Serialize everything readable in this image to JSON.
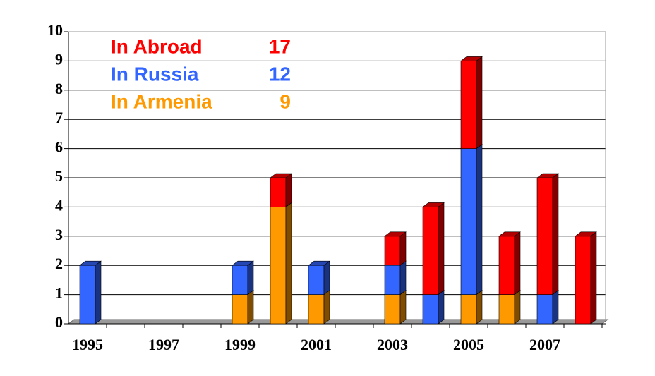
{
  "chart_data": {
    "type": "stacked-bar-3d",
    "categories": [
      "1995",
      null,
      "1997",
      null,
      "1999",
      null,
      "2001",
      null,
      "2003",
      null,
      "2005",
      null,
      "2007",
      null
    ],
    "series": [
      {
        "name": "In Abroad",
        "total": 17,
        "color": "#ff0000",
        "values": [
          0,
          0,
          0,
          0,
          0,
          1,
          0,
          0,
          1,
          3,
          3,
          2,
          4,
          3
        ]
      },
      {
        "name": "In Russia",
        "total": 12,
        "color": "#3366ff",
        "values": [
          2,
          0,
          0,
          0,
          1,
          0,
          1,
          0,
          1,
          1,
          5,
          0,
          1,
          0
        ]
      },
      {
        "name": "In Armenia",
        "total": 9,
        "color": "#ff9900",
        "values": [
          0,
          0,
          0,
          0,
          1,
          4,
          1,
          0,
          1,
          0,
          1,
          1,
          0,
          0
        ]
      }
    ],
    "ylim": [
      0,
      10
    ],
    "yticks": [
      0,
      1,
      2,
      3,
      4,
      5,
      6,
      7,
      8,
      9,
      10
    ],
    "grid": true
  }
}
